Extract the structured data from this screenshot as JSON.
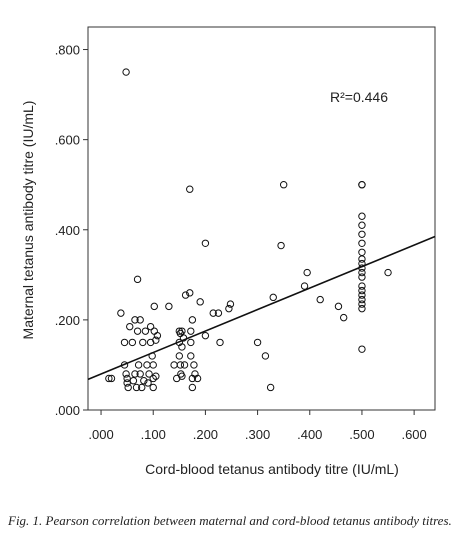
{
  "chart_data": {
    "type": "scatter",
    "xlabel": "Cord-blood tetanus antibody titre (IU/mL)",
    "ylabel": "Maternal tetanus antibody titre (IU/mL)",
    "xlim": [
      -0.025,
      0.64
    ],
    "ylim": [
      0.0,
      0.85
    ],
    "x_ticks": [
      ".000",
      ".100",
      ".200",
      ".300",
      ".400",
      ".500",
      ".600"
    ],
    "x_tick_values": [
      0.0,
      0.1,
      0.2,
      0.3,
      0.4,
      0.5,
      0.6
    ],
    "y_ticks": [
      ".000",
      ".200",
      ".400",
      ".600",
      ".800"
    ],
    "y_tick_values": [
      0.0,
      0.2,
      0.4,
      0.6,
      0.8
    ],
    "grid": false,
    "annotation": "R²=0.446",
    "fit_line": {
      "x": [
        -0.025,
        0.64
      ],
      "y": [
        0.068,
        0.385
      ]
    },
    "points": [
      [
        0.015,
        0.07
      ],
      [
        0.02,
        0.07
      ],
      [
        0.038,
        0.215
      ],
      [
        0.048,
        0.75
      ],
      [
        0.045,
        0.15
      ],
      [
        0.045,
        0.1
      ],
      [
        0.048,
        0.08
      ],
      [
        0.05,
        0.06
      ],
      [
        0.05,
        0.07
      ],
      [
        0.052,
        0.05
      ],
      [
        0.055,
        0.185
      ],
      [
        0.06,
        0.15
      ],
      [
        0.062,
        0.065
      ],
      [
        0.065,
        0.2
      ],
      [
        0.065,
        0.08
      ],
      [
        0.068,
        0.05
      ],
      [
        0.07,
        0.29
      ],
      [
        0.07,
        0.175
      ],
      [
        0.072,
        0.1
      ],
      [
        0.075,
        0.08
      ],
      [
        0.075,
        0.2
      ],
      [
        0.078,
        0.05
      ],
      [
        0.08,
        0.15
      ],
      [
        0.082,
        0.065
      ],
      [
        0.085,
        0.175
      ],
      [
        0.088,
        0.1
      ],
      [
        0.09,
        0.06
      ],
      [
        0.092,
        0.08
      ],
      [
        0.095,
        0.185
      ],
      [
        0.095,
        0.15
      ],
      [
        0.098,
        0.12
      ],
      [
        0.1,
        0.1
      ],
      [
        0.1,
        0.05
      ],
      [
        0.1,
        0.07
      ],
      [
        0.102,
        0.23
      ],
      [
        0.102,
        0.175
      ],
      [
        0.105,
        0.155
      ],
      [
        0.105,
        0.075
      ],
      [
        0.108,
        0.165
      ],
      [
        0.13,
        0.23
      ],
      [
        0.14,
        0.1
      ],
      [
        0.145,
        0.07
      ],
      [
        0.15,
        0.15
      ],
      [
        0.15,
        0.175
      ],
      [
        0.15,
        0.12
      ],
      [
        0.152,
        0.17
      ],
      [
        0.152,
        0.1
      ],
      [
        0.153,
        0.08
      ],
      [
        0.155,
        0.175
      ],
      [
        0.155,
        0.14
      ],
      [
        0.155,
        0.075
      ],
      [
        0.158,
        0.16
      ],
      [
        0.16,
        0.1
      ],
      [
        0.162,
        0.255
      ],
      [
        0.17,
        0.49
      ],
      [
        0.17,
        0.26
      ],
      [
        0.172,
        0.175
      ],
      [
        0.172,
        0.15
      ],
      [
        0.172,
        0.12
      ],
      [
        0.175,
        0.2
      ],
      [
        0.175,
        0.07
      ],
      [
        0.175,
        0.05
      ],
      [
        0.178,
        0.1
      ],
      [
        0.18,
        0.08
      ],
      [
        0.185,
        0.07
      ],
      [
        0.19,
        0.24
      ],
      [
        0.2,
        0.37
      ],
      [
        0.2,
        0.165
      ],
      [
        0.215,
        0.215
      ],
      [
        0.225,
        0.215
      ],
      [
        0.228,
        0.15
      ],
      [
        0.245,
        0.225
      ],
      [
        0.248,
        0.235
      ],
      [
        0.3,
        0.15
      ],
      [
        0.315,
        0.12
      ],
      [
        0.325,
        0.05
      ],
      [
        0.33,
        0.25
      ],
      [
        0.345,
        0.365
      ],
      [
        0.35,
        0.5
      ],
      [
        0.39,
        0.275
      ],
      [
        0.395,
        0.305
      ],
      [
        0.42,
        0.245
      ],
      [
        0.455,
        0.23
      ],
      [
        0.465,
        0.205
      ],
      [
        0.5,
        0.5
      ],
      [
        0.5,
        0.5
      ],
      [
        0.5,
        0.43
      ],
      [
        0.5,
        0.41
      ],
      [
        0.5,
        0.39
      ],
      [
        0.5,
        0.37
      ],
      [
        0.5,
        0.35
      ],
      [
        0.5,
        0.335
      ],
      [
        0.5,
        0.325
      ],
      [
        0.5,
        0.315
      ],
      [
        0.5,
        0.305
      ],
      [
        0.5,
        0.295
      ],
      [
        0.5,
        0.275
      ],
      [
        0.5,
        0.265
      ],
      [
        0.5,
        0.255
      ],
      [
        0.5,
        0.245
      ],
      [
        0.5,
        0.235
      ],
      [
        0.5,
        0.225
      ],
      [
        0.5,
        0.135
      ],
      [
        0.55,
        0.305
      ]
    ]
  },
  "caption": "Fig. 1. Pearson correlation between maternal and cord-blood tetanus antibody titres."
}
